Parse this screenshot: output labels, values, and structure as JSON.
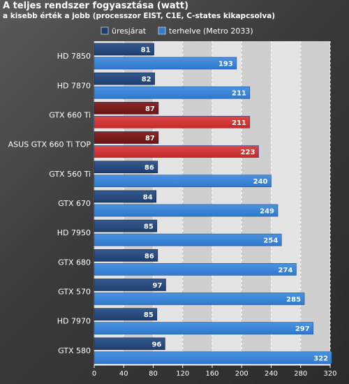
{
  "chart_data": {
    "type": "bar",
    "orientation": "horizontal",
    "title": "A teljes rendszer fogyasztása (watt)",
    "subtitle": "a kisebb érték a jobb (processzor EIST, C1E, C-states kikapcsolva)",
    "categories": [
      "HD 7850",
      "HD 7870",
      "GTX 660 Ti",
      "ASUS GTX 660 Ti TOP",
      "GTX 560 Ti",
      "GTX 670",
      "HD 7950",
      "GTX 680",
      "GTX 570",
      "HD 7970",
      "GTX 580"
    ],
    "series": [
      {
        "name": "üresjárat",
        "values": [
          81,
          82,
          87,
          87,
          86,
          84,
          85,
          86,
          97,
          85,
          96
        ]
      },
      {
        "name": "terhelve (Metro 2033)",
        "values": [
          193,
          211,
          211,
          223,
          240,
          249,
          254,
          274,
          285,
          297,
          322
        ]
      }
    ],
    "highlighted_categories": [
      "GTX 660 Ti",
      "ASUS GTX 660 Ti TOP"
    ],
    "xlim": [
      0,
      320
    ],
    "xticks": [
      0,
      40,
      80,
      120,
      160,
      200,
      240,
      280,
      320
    ],
    "grid": true,
    "legend_position": "top",
    "colors": {
      "series_idle": "#1f3f70",
      "series_load": "#2f79cf",
      "highlight_idle": "#6a1414",
      "highlight_load": "#c42a2a",
      "plot_stripe_light": "#e4e4e4",
      "plot_stripe_dark": "#cfcfcf"
    }
  }
}
